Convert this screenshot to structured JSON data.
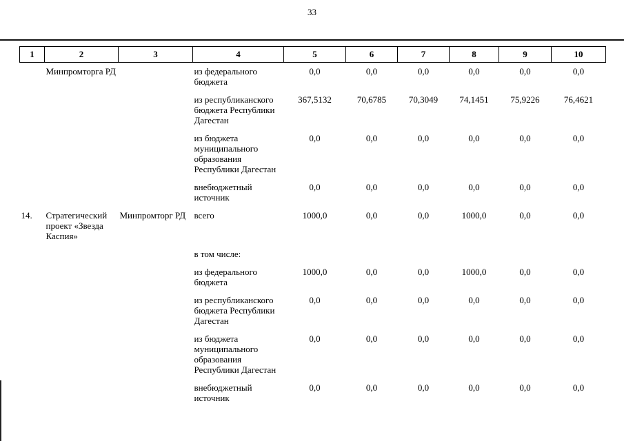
{
  "page_number": "33",
  "table": {
    "column_headers": [
      "1",
      "2",
      "3",
      "4",
      "5",
      "6",
      "7",
      "8",
      "9",
      "10"
    ],
    "rows": [
      {
        "c2": "Минпромторга РД",
        "c4": "из федерального бюджета",
        "v1": "0,0",
        "v2": "0,0",
        "v3": "0,0",
        "v4": "0,0",
        "v5": "0,0",
        "v6": "0,0"
      },
      {
        "c4": "из республиканского бюджета Республики Дагестан",
        "v1": "367,5132",
        "v2": "70,6785",
        "v3": "70,3049",
        "v4": "74,1451",
        "v5": "75,9226",
        "v6": "76,4621"
      },
      {
        "c4": "из бюджета муниципального образования Республики Дагестан",
        "v1": "0,0",
        "v2": "0,0",
        "v3": "0,0",
        "v4": "0,0",
        "v5": "0,0",
        "v6": "0,0"
      },
      {
        "c4": "внебюджетный источник",
        "v1": "0,0",
        "v2": "0,0",
        "v3": "0,0",
        "v4": "0,0",
        "v5": "0,0",
        "v6": "0,0"
      },
      {
        "c1": "14.",
        "c2": "Стратегический проект «Звезда Каспия»",
        "c3": "Минпромторг РД",
        "c4": "всего",
        "v1": "1000,0",
        "v2": "0,0",
        "v3": "0,0",
        "v4": "1000,0",
        "v5": "0,0",
        "v6": "0,0"
      },
      {
        "c4": "в том числе:"
      },
      {
        "c4": "из федерального бюджета",
        "v1": "1000,0",
        "v2": "0,0",
        "v3": "0,0",
        "v4": "1000,0",
        "v5": "0,0",
        "v6": "0,0"
      },
      {
        "c4": "из республиканского бюджета Республики Дагестан",
        "v1": "0,0",
        "v2": "0,0",
        "v3": "0,0",
        "v4": "0,0",
        "v5": "0,0",
        "v6": "0,0"
      },
      {
        "c4": "из бюджета муниципального образования Республики Дагестан",
        "v1": "0,0",
        "v2": "0,0",
        "v3": "0,0",
        "v4": "0,0",
        "v5": "0,0",
        "v6": "0,0"
      },
      {
        "c4": "внебюджетный источник",
        "v1": "0,0",
        "v2": "0,0",
        "v3": "0,0",
        "v4": "0,0",
        "v5": "0,0",
        "v6": "0,0"
      }
    ]
  }
}
